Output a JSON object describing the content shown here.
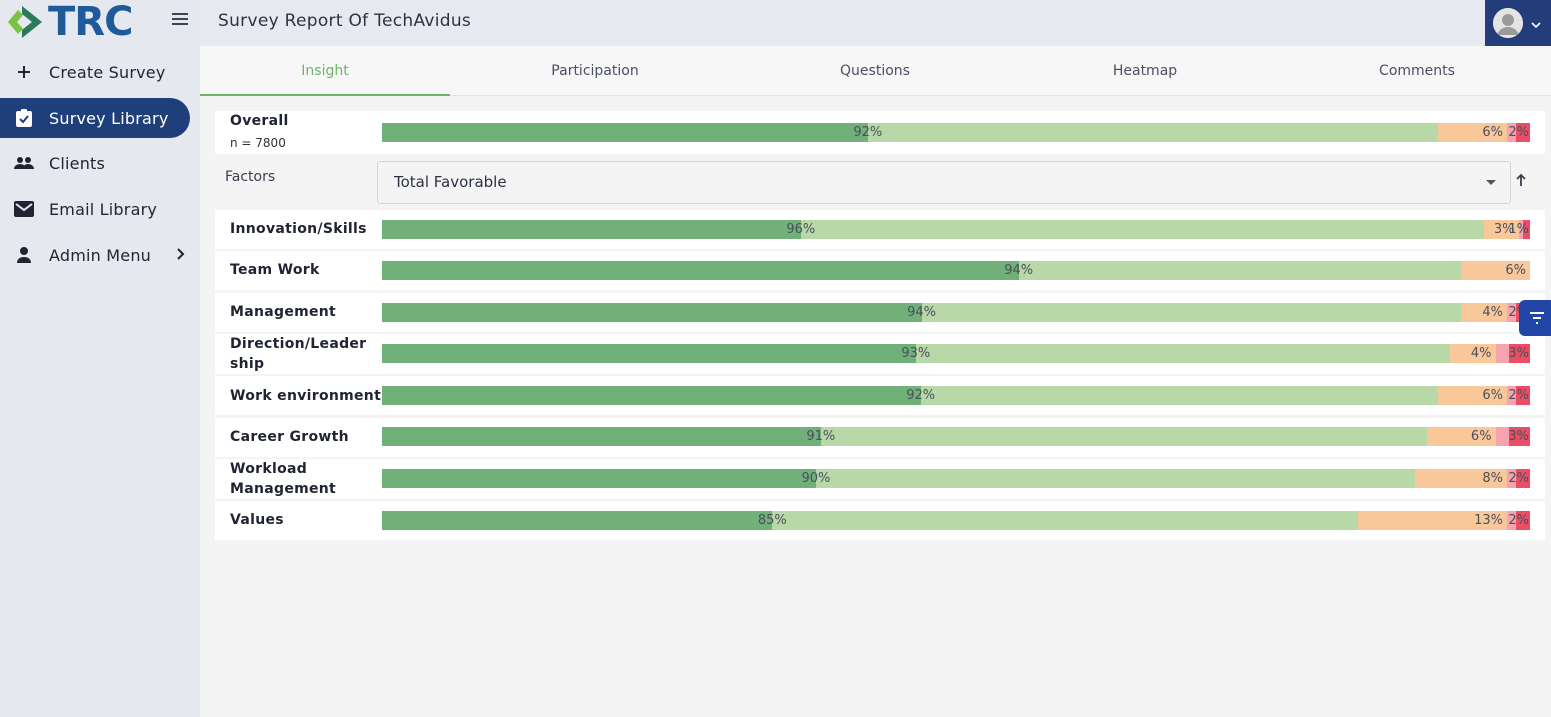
{
  "app": {
    "logo_text": "TRC",
    "page_title": "Survey Report Of TechAvidus"
  },
  "sidebar": {
    "items": [
      {
        "label": "Create Survey",
        "icon": "plus-icon"
      },
      {
        "label": "Survey Library",
        "icon": "clipboard-check-icon",
        "active": true
      },
      {
        "label": "Clients",
        "icon": "people-icon"
      },
      {
        "label": "Email Library",
        "icon": "envelope-icon"
      },
      {
        "label": "Admin Menu",
        "icon": "person-icon"
      }
    ]
  },
  "tabs": [
    {
      "label": "Insight",
      "active": true
    },
    {
      "label": "Participation"
    },
    {
      "label": "Questions"
    },
    {
      "label": "Heatmap"
    },
    {
      "label": "Comments"
    }
  ],
  "overall": {
    "label": "Overall",
    "n_text": "n = 7800",
    "favorable": 92,
    "neutral": 6,
    "unfavorable": 2,
    "strong_fraction": 0.46
  },
  "factors": {
    "label": "Factors",
    "selected": "Total Favorable"
  },
  "rows": [
    {
      "label": "Innovation/Skills",
      "favorable": 96,
      "neutral": 3,
      "unfavorable": 1,
      "strong_fraction": 0.38
    },
    {
      "label": "Team Work",
      "favorable": 94,
      "neutral": 6,
      "unfavorable": null,
      "strong_fraction": 0.59
    },
    {
      "label": "Management",
      "favorable": 94,
      "neutral": 4,
      "unfavorable": 2,
      "strong_fraction": 0.5
    },
    {
      "label": "Direction/Leadership",
      "favorable": 93,
      "neutral": 4,
      "unfavorable": 3,
      "strong_fraction": 0.5
    },
    {
      "label": "Work environment",
      "favorable": 92,
      "neutral": 6,
      "unfavorable": 2,
      "strong_fraction": 0.51
    },
    {
      "label": "Career Growth",
      "favorable": 91,
      "neutral": 6,
      "unfavorable": 3,
      "strong_fraction": 0.42
    },
    {
      "label": "Workload Management",
      "favorable": 90,
      "neutral": 8,
      "unfavorable": 2,
      "strong_fraction": 0.42
    },
    {
      "label": "Values",
      "favorable": 85,
      "neutral": 13,
      "unfavorable": 2,
      "strong_fraction": 0.4
    }
  ],
  "colors": {
    "strong_favorable": "#72b07a",
    "favorable": "#b8d8a8",
    "neutral": "#f9c89a",
    "unfavorable": "#f5a3ae",
    "strong_unfavorable": "#ec4d64",
    "accent": "#1f3f7a"
  }
}
